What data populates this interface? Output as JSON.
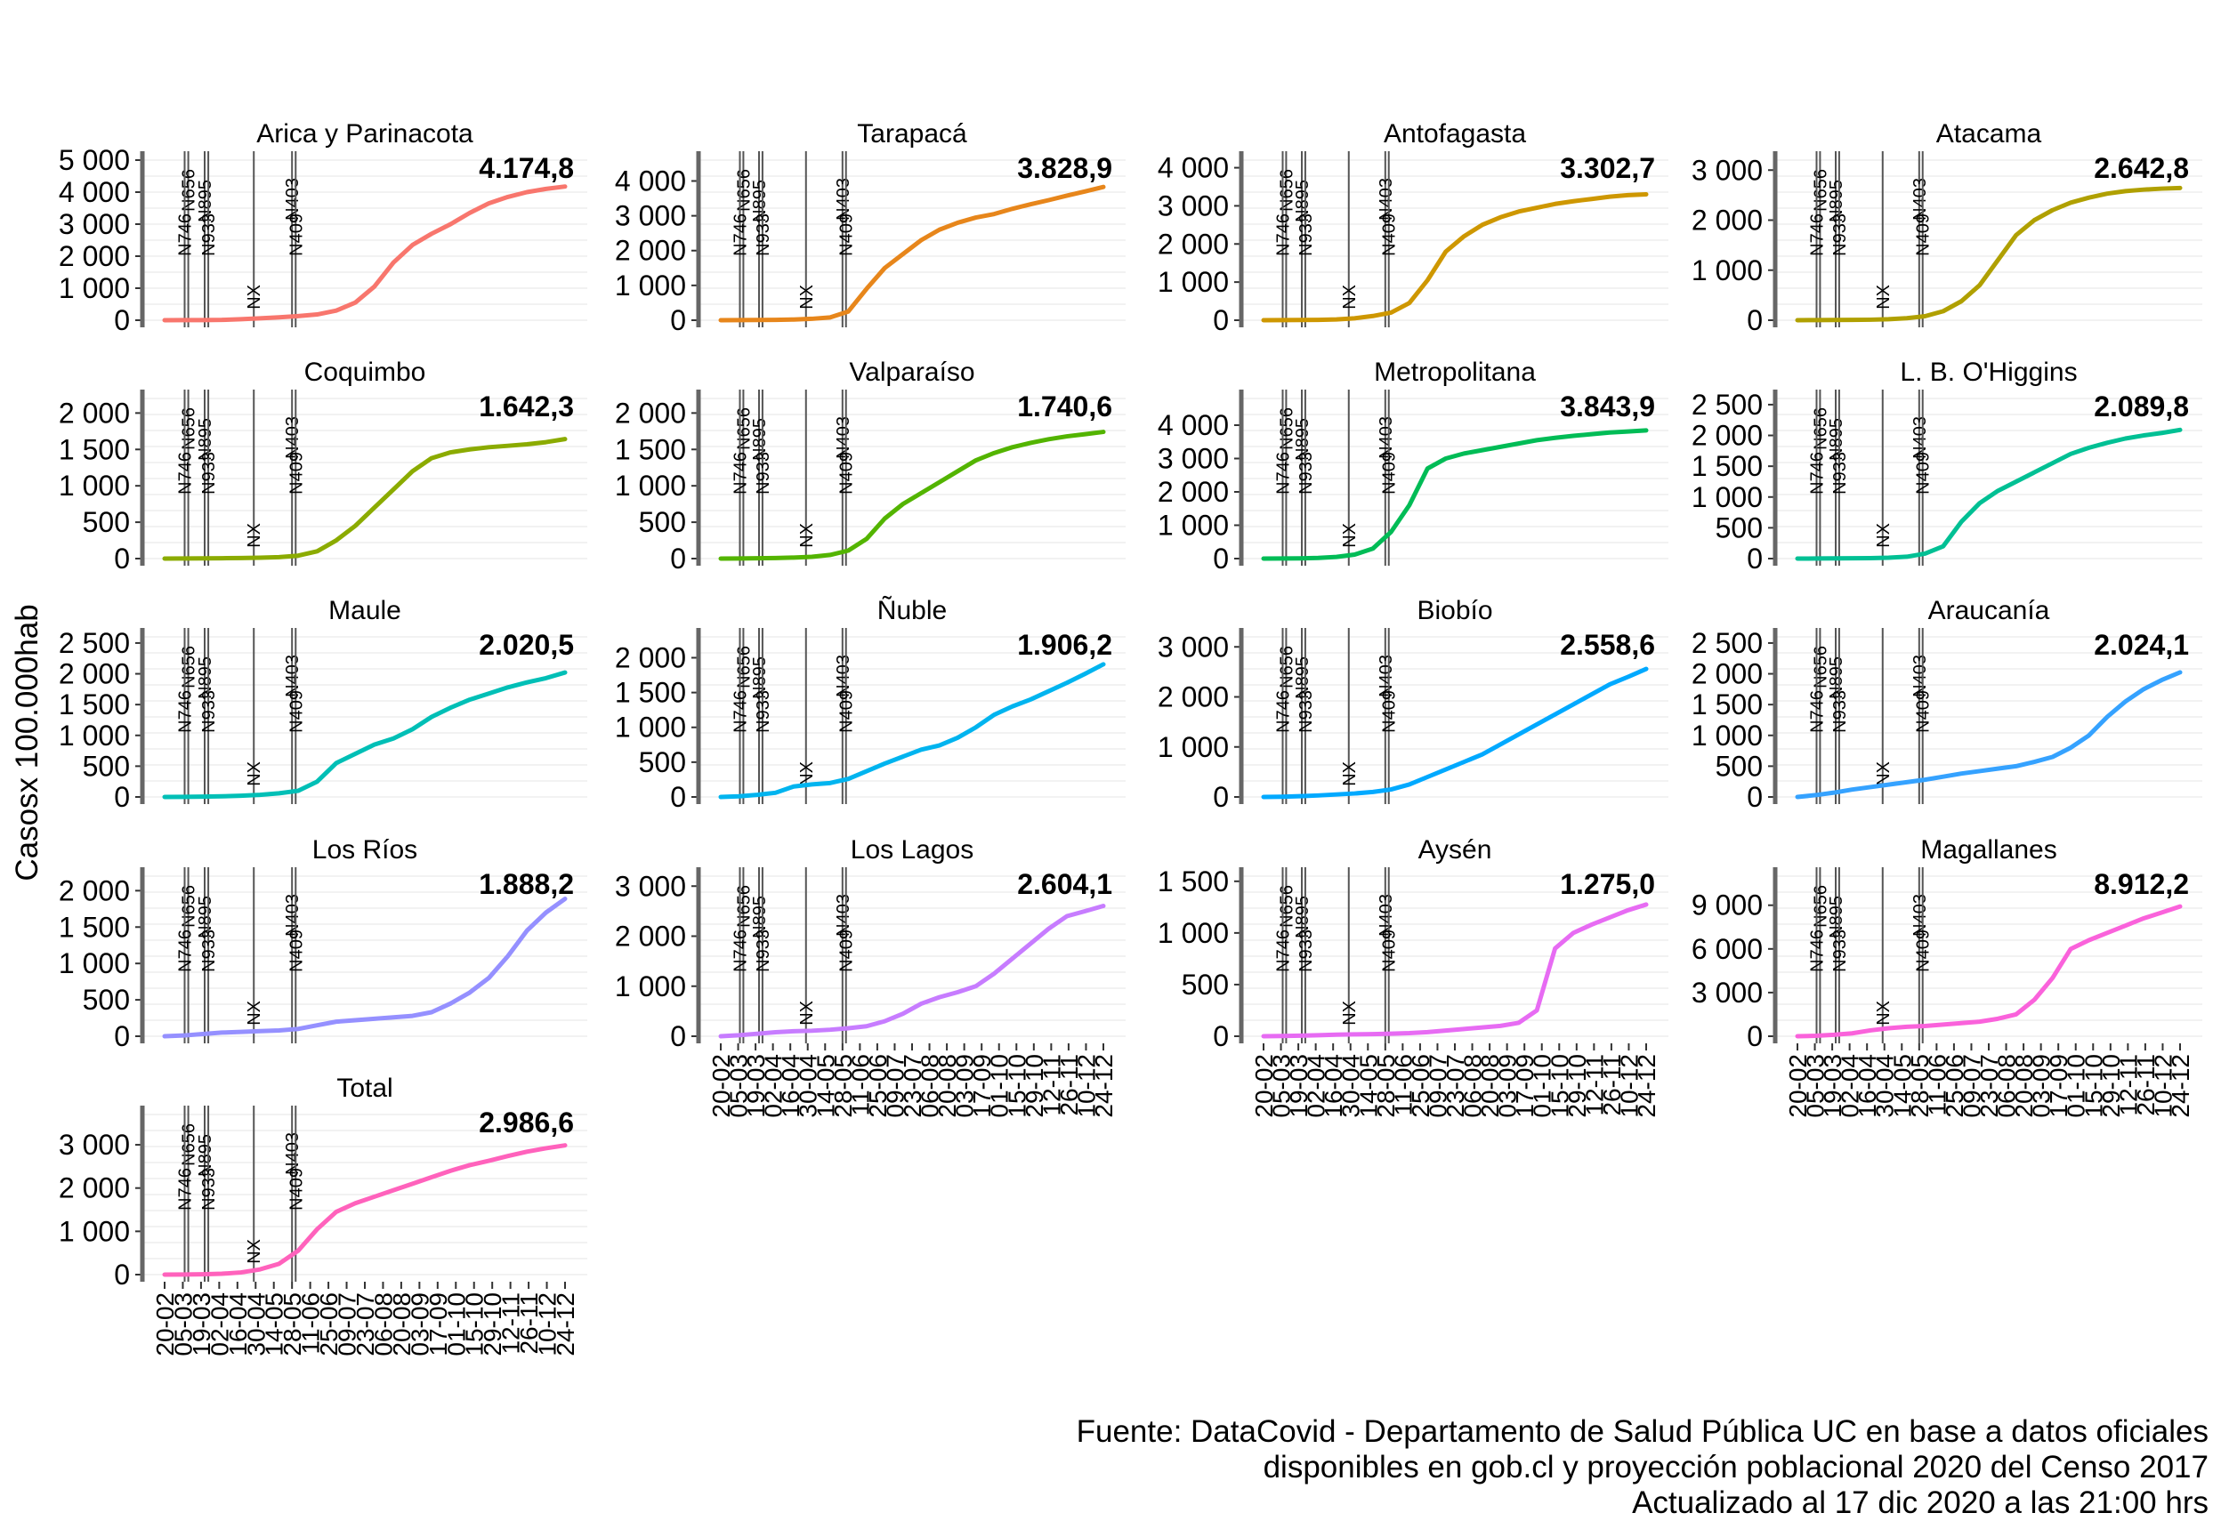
{
  "y_axis_label": "Casosx 100.000hab",
  "caption": [
    "Fuente: DataCovid - Departamento de Salud Pública UC en base a datos oficiales",
    "disponibles en gob.cl y proyección poblacional 2020 del Censo 2017",
    "Actualizado al 17 dic 2020  a las 21:00 hrs"
  ],
  "x_tick_labels": [
    "20-02",
    "05-03",
    "19-03",
    "02-04",
    "16-04",
    "30-04",
    "14-05",
    "28-05",
    "11-06",
    "25-06",
    "09-07",
    "23-07",
    "06-08",
    "20-08",
    "03-09",
    "17-09",
    "01-10",
    "15-10",
    "29-10",
    "12-11",
    "26-11",
    "10-12",
    "24-12"
  ],
  "vertical_markers": [
    {
      "label": "N656",
      "date_index": 1.3
    },
    {
      "label": "N746",
      "date_index": 1.1
    },
    {
      "label": "N895",
      "date_index": 2.2
    },
    {
      "label": "N933",
      "date_index": 2.4
    },
    {
      "label": "NX",
      "date_index": 4.9
    },
    {
      "label": "N403",
      "date_index": 7.0
    },
    {
      "label": "N409",
      "date_index": 7.2
    }
  ],
  "chart_data": [
    {
      "type": "line",
      "title": "Arica y Parinacota",
      "final_label": "4.174,8",
      "color": "#F8766D",
      "yticks": [
        "0",
        "1 000",
        "2 000",
        "3 000",
        "4 000",
        "5 000"
      ],
      "ylim": [
        0,
        5000
      ],
      "y": [
        0,
        2,
        5,
        10,
        30,
        60,
        90,
        130,
        180,
        300,
        550,
        1050,
        1800,
        2350,
        2700,
        3000,
        3350,
        3650,
        3850,
        4000,
        4100,
        4175
      ]
    },
    {
      "type": "line",
      "title": "Tarapacá",
      "final_label": "3.828,9",
      "color": "#E7861B",
      "yticks": [
        "0",
        "1 000",
        "2 000",
        "3 000",
        "4 000"
      ],
      "ylim": [
        0,
        4600
      ],
      "y": [
        0,
        2,
        5,
        10,
        20,
        40,
        80,
        250,
        900,
        1500,
        1900,
        2300,
        2600,
        2800,
        2950,
        3050,
        3200,
        3330,
        3450,
        3580,
        3700,
        3829
      ]
    },
    {
      "type": "line",
      "title": "Antofagasta",
      "final_label": "3.302,7",
      "color": "#CE9700",
      "yticks": [
        "0",
        "1 000",
        "2 000",
        "3 000",
        "4 000"
      ],
      "ylim": [
        0,
        4200
      ],
      "y": [
        0,
        2,
        5,
        10,
        20,
        50,
        110,
        200,
        450,
        1050,
        1800,
        2200,
        2500,
        2700,
        2850,
        2950,
        3050,
        3120,
        3180,
        3240,
        3280,
        3303
      ]
    },
    {
      "type": "line",
      "title": "Atacama",
      "final_label": "2.642,8",
      "color": "#B0A000",
      "yticks": [
        "0",
        "1 000",
        "2 000",
        "3 000"
      ],
      "ylim": [
        0,
        3200
      ],
      "y": [
        0,
        2,
        4,
        6,
        10,
        20,
        40,
        80,
        180,
        380,
        700,
        1200,
        1700,
        2000,
        2200,
        2350,
        2450,
        2530,
        2580,
        2610,
        2630,
        2643
      ]
    },
    {
      "type": "line",
      "title": "Coquimbo",
      "final_label": "1.642,3",
      "color": "#8BAB00",
      "yticks": [
        "0",
        "500",
        "1 000",
        "1 500",
        "2 000"
      ],
      "ylim": [
        0,
        2200
      ],
      "y": [
        0,
        1,
        3,
        5,
        8,
        12,
        20,
        40,
        100,
        250,
        450,
        700,
        950,
        1200,
        1380,
        1460,
        1500,
        1530,
        1550,
        1570,
        1600,
        1642
      ]
    },
    {
      "type": "line",
      "title": "Valparaíso",
      "final_label": "1.740,6",
      "color": "#53B400",
      "yticks": [
        "0",
        "500",
        "1 000",
        "1 500",
        "2 000"
      ],
      "ylim": [
        0,
        2200
      ],
      "y": [
        0,
        2,
        4,
        8,
        14,
        25,
        50,
        110,
        270,
        550,
        750,
        900,
        1050,
        1200,
        1350,
        1450,
        1530,
        1590,
        1640,
        1680,
        1710,
        1741
      ]
    },
    {
      "type": "line",
      "title": "Metropolitana",
      "final_label": "3.843,9",
      "color": "#00BC56",
      "yticks": [
        "0",
        "1 000",
        "2 000",
        "3 000",
        "4 000"
      ],
      "ylim": [
        0,
        4800
      ],
      "y": [
        0,
        3,
        8,
        20,
        50,
        120,
        300,
        800,
        1600,
        2700,
        3000,
        3150,
        3250,
        3350,
        3450,
        3550,
        3620,
        3680,
        3730,
        3780,
        3810,
        3844
      ]
    },
    {
      "type": "line",
      "title": "L. B. O'Higgins",
      "final_label": "2.089,8",
      "color": "#00C094",
      "yticks": [
        "0",
        "500",
        "1 000",
        "1 500",
        "2 000",
        "2 500"
      ],
      "ylim": [
        0,
        2600
      ],
      "y": [
        0,
        1,
        3,
        5,
        8,
        15,
        30,
        80,
        200,
        600,
        900,
        1100,
        1250,
        1400,
        1550,
        1700,
        1800,
        1880,
        1950,
        2000,
        2040,
        2090
      ]
    },
    {
      "type": "line",
      "title": "Maule",
      "final_label": "2.020,5",
      "color": "#00BFB6",
      "yticks": [
        "0",
        "500",
        "1 000",
        "1 500",
        "2 000",
        "2 500"
      ],
      "ylim": [
        0,
        2600
      ],
      "y": [
        0,
        2,
        5,
        10,
        20,
        35,
        60,
        100,
        250,
        550,
        700,
        850,
        950,
        1100,
        1300,
        1450,
        1580,
        1680,
        1780,
        1860,
        1930,
        2021
      ]
    },
    {
      "type": "line",
      "title": "Ñuble",
      "final_label": "1.906,2",
      "color": "#00B4EF",
      "yticks": [
        "0",
        "500",
        "1 000",
        "1 500",
        "2 000"
      ],
      "ylim": [
        0,
        2300
      ],
      "y": [
        0,
        10,
        30,
        60,
        150,
        180,
        200,
        260,
        370,
        480,
        580,
        680,
        740,
        850,
        1000,
        1180,
        1300,
        1400,
        1520,
        1640,
        1770,
        1906
      ]
    },
    {
      "type": "line",
      "title": "Biobío",
      "final_label": "2.558,6",
      "color": "#00A9FF",
      "yticks": [
        "0",
        "1 000",
        "2 000",
        "3 000"
      ],
      "ylim": [
        0,
        3200
      ],
      "y": [
        0,
        5,
        15,
        30,
        50,
        70,
        100,
        150,
        250,
        400,
        550,
        700,
        850,
        1050,
        1250,
        1450,
        1650,
        1850,
        2050,
        2250,
        2400,
        2559
      ]
    },
    {
      "type": "line",
      "title": "Araucanía",
      "final_label": "2.024,1",
      "color": "#35A2FF",
      "yticks": [
        "0",
        "500",
        "1 000",
        "1 500",
        "2 000",
        "2 500"
      ],
      "ylim": [
        0,
        2600
      ],
      "y": [
        0,
        30,
        70,
        120,
        160,
        200,
        240,
        280,
        330,
        380,
        420,
        460,
        500,
        570,
        650,
        800,
        1000,
        1300,
        1550,
        1750,
        1900,
        2024
      ]
    },
    {
      "type": "line",
      "title": "Los Ríos",
      "final_label": "1.888,2",
      "color": "#9590FF",
      "yticks": [
        "0",
        "500",
        "1 000",
        "1 500",
        "2 000"
      ],
      "ylim": [
        0,
        2200
      ],
      "y": [
        0,
        10,
        30,
        50,
        60,
        70,
        80,
        100,
        150,
        200,
        220,
        240,
        260,
        280,
        330,
        450,
        600,
        800,
        1100,
        1450,
        1700,
        1888
      ]
    },
    {
      "type": "line",
      "title": "Los Lagos",
      "final_label": "2.604,1",
      "color": "#C77CFF",
      "yticks": [
        "0",
        "1 000",
        "2 000",
        "3 000"
      ],
      "ylim": [
        0,
        3200
      ],
      "y": [
        0,
        20,
        50,
        80,
        100,
        110,
        130,
        160,
        200,
        300,
        450,
        650,
        780,
        880,
        1000,
        1250,
        1550,
        1850,
        2150,
        2400,
        2500,
        2604
      ]
    },
    {
      "type": "line",
      "title": "Aysén",
      "final_label": "1.275,0",
      "color": "#E76BF3",
      "yticks": [
        "0",
        "500",
        "1 000",
        "1 500"
      ],
      "ylim": [
        0,
        1550
      ],
      "y": [
        0,
        2,
        5,
        10,
        15,
        18,
        20,
        25,
        30,
        40,
        55,
        70,
        85,
        100,
        130,
        250,
        850,
        1000,
        1080,
        1150,
        1220,
        1275
      ]
    },
    {
      "type": "line",
      "title": "Magallanes",
      "final_label": "8.912,2",
      "color": "#FA62DB",
      "yticks": [
        "0",
        "3 000",
        "6 000",
        "9 000"
      ],
      "ylim": [
        0,
        11000
      ],
      "y": [
        0,
        30,
        100,
        200,
        400,
        550,
        650,
        700,
        800,
        900,
        1000,
        1200,
        1500,
        2500,
        4000,
        6000,
        6600,
        7100,
        7600,
        8100,
        8500,
        8912
      ]
    },
    {
      "type": "line",
      "title": "Total",
      "final_label": "2.986,6",
      "color": "#FF62BC",
      "yticks": [
        "0",
        "1 000",
        "2 000",
        "3 000"
      ],
      "ylim": [
        0,
        3700
      ],
      "y": [
        0,
        3,
        8,
        20,
        50,
        120,
        250,
        550,
        1050,
        1450,
        1650,
        1800,
        1950,
        2100,
        2250,
        2400,
        2530,
        2630,
        2740,
        2840,
        2920,
        2987
      ]
    }
  ]
}
